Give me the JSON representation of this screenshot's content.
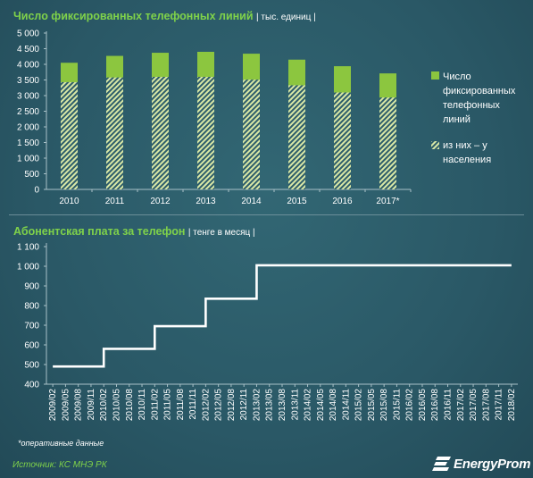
{
  "top_chart": {
    "title": "Число фиксированных телефонных линий",
    "unit": "| тыс. единиц |"
  },
  "bottom_chart": {
    "title": "Абонентская плата за телефон",
    "unit": "| тенге в месяц |"
  },
  "footnote": "*оперативные данные",
  "source": "Источник: КС МНЭ РК",
  "logo_text": "EnergyProm",
  "colors": {
    "background": "#2b5a67",
    "total_bar": "#8cc63f",
    "households_hatch": "#d9e8a6",
    "line": "#ffffff",
    "title_green": "#7fd24a"
  },
  "chart_data": [
    {
      "type": "bar",
      "stacked_overlay": true,
      "categories": [
        "2010",
        "2011",
        "2012",
        "2013",
        "2014",
        "2015",
        "2016",
        "2017*"
      ],
      "series": [
        {
          "name": "Число фиксированных телефонных линий",
          "values": [
            4050,
            4270,
            4370,
            4400,
            4340,
            4150,
            3940,
            3710
          ]
        },
        {
          "name": "из них – у населения",
          "values": [
            3430,
            3580,
            3600,
            3600,
            3510,
            3330,
            3100,
            2940
          ]
        }
      ],
      "ylim": [
        0,
        5000
      ],
      "yticks": [
        0,
        500,
        1000,
        1500,
        2000,
        2500,
        3000,
        3500,
        4000,
        4500,
        5000
      ],
      "ytick_labels": [
        "0",
        "500",
        "1 000",
        "1 500",
        "2 000",
        "2 500",
        "3 000",
        "3 500",
        "4 000",
        "4 500",
        "5 000"
      ],
      "legend": [
        "Число фиксированных телефонных линий",
        "из них – у населения"
      ],
      "legend_lines": [
        [
          "Число",
          "фиксированных",
          "телефонных",
          "линий"
        ],
        [
          "из них – у",
          "населения"
        ]
      ],
      "legend_position": "right",
      "grid": false
    },
    {
      "type": "line",
      "step": true,
      "x": [
        "2009/02",
        "2009/05",
        "2009/08",
        "2009/11",
        "2010/02",
        "2010/05",
        "2010/08",
        "2010/11",
        "2011/02",
        "2011/05",
        "2011/08",
        "2011/11",
        "2012/02",
        "2012/05",
        "2012/08",
        "2012/11",
        "2013/02",
        "2013/05",
        "2013/08",
        "2013/11",
        "2014/02",
        "2014/05",
        "2014/08",
        "2014/11",
        "2015/02",
        "2015/05",
        "2015/08",
        "2015/11",
        "2016/02",
        "2016/05",
        "2016/08",
        "2016/11",
        "2017/02",
        "2017/05",
        "2017/08",
        "2017/11",
        "2018/02"
      ],
      "values": [
        490,
        490,
        490,
        490,
        580,
        580,
        580,
        580,
        695,
        695,
        695,
        695,
        835,
        835,
        835,
        835,
        1005,
        1005,
        1005,
        1005,
        1005,
        1005,
        1005,
        1005,
        1005,
        1005,
        1005,
        1005,
        1005,
        1005,
        1005,
        1005,
        1005,
        1005,
        1005,
        1005,
        1005
      ],
      "ylim": [
        400,
        1100
      ],
      "yticks": [
        400,
        500,
        600,
        700,
        800,
        900,
        1000,
        1100
      ],
      "ytick_labels": [
        "400",
        "500",
        "600",
        "700",
        "800",
        "900",
        "1 000",
        "1 100"
      ],
      "grid": false
    }
  ]
}
